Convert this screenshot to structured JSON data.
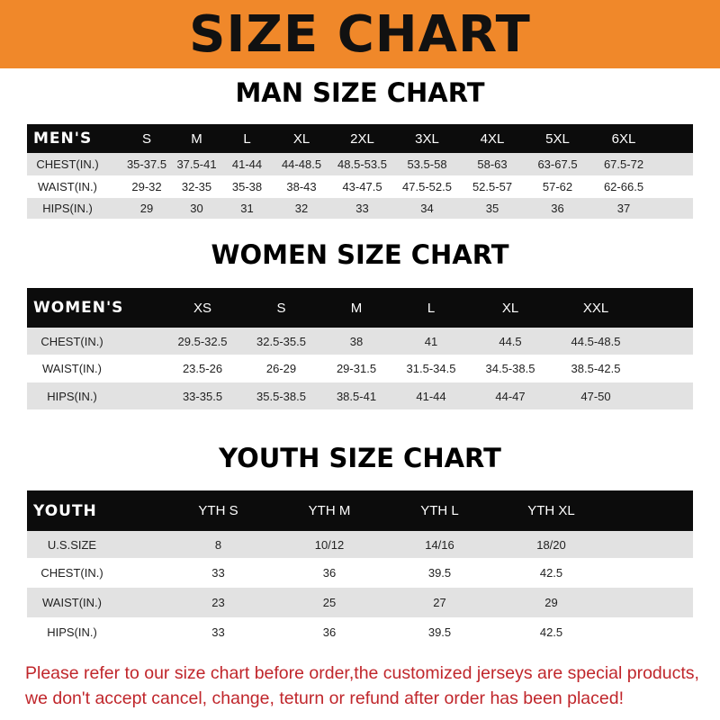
{
  "banner": {
    "title": "SIZE CHART",
    "color": "#f0882a"
  },
  "men": {
    "title": "MAN SIZE CHART",
    "header": [
      "MEN'S",
      "S",
      "M",
      "L",
      "XL",
      "2XL",
      "3XL",
      "4XL",
      "5XL",
      "6XL"
    ],
    "rows": [
      [
        "CHEST(IN.)",
        "35-37.5",
        "37.5-41",
        "41-44",
        "44-48.5",
        "48.5-53.5",
        "53.5-58",
        "58-63",
        "63-67.5",
        "67.5-72"
      ],
      [
        "WAIST(IN.)",
        "29-32",
        "32-35",
        "35-38",
        "38-43",
        "43-47.5",
        "47.5-52.5",
        "52.5-57",
        "57-62",
        "62-66.5"
      ],
      [
        "HIPS(IN.)",
        "29",
        "30",
        "31",
        "32",
        "33",
        "34",
        "35",
        "36",
        "37"
      ]
    ]
  },
  "women": {
    "title": "WOMEN SIZE CHART",
    "header": [
      "WOMEN'S",
      "XS",
      "S",
      "M",
      "L",
      "XL",
      "XXL"
    ],
    "rows": [
      [
        "CHEST(IN.)",
        "29.5-32.5",
        "32.5-35.5",
        "38",
        "41",
        "44.5",
        "44.5-48.5"
      ],
      [
        "WAIST(IN.)",
        "23.5-26",
        "26-29",
        "29-31.5",
        "31.5-34.5",
        "34.5-38.5",
        "38.5-42.5"
      ],
      [
        "HIPS(IN.)",
        "33-35.5",
        "35.5-38.5",
        "38.5-41",
        "41-44",
        "44-47",
        "47-50"
      ]
    ]
  },
  "youth": {
    "title": "YOUTH SIZE CHART",
    "header": [
      "YOUTH",
      "YTH S",
      "YTH M",
      "YTH L",
      "YTH XL"
    ],
    "rows": [
      [
        "U.S.SIZE",
        "8",
        "10/12",
        "14/16",
        "18/20"
      ],
      [
        "CHEST(IN.)",
        "33",
        "36",
        "39.5",
        "42.5"
      ],
      [
        "WAIST(IN.)",
        "23",
        "25",
        "27",
        "29"
      ],
      [
        "HIPS(IN.)",
        "33",
        "36",
        "39.5",
        "42.5"
      ]
    ]
  },
  "note": {
    "line1": "Please refer to our size chart before order,the customized jerseys are special products,",
    "line2": "we don't accept cancel, change, teturn or refund after order has been placed!",
    "color": "#c0262b"
  }
}
